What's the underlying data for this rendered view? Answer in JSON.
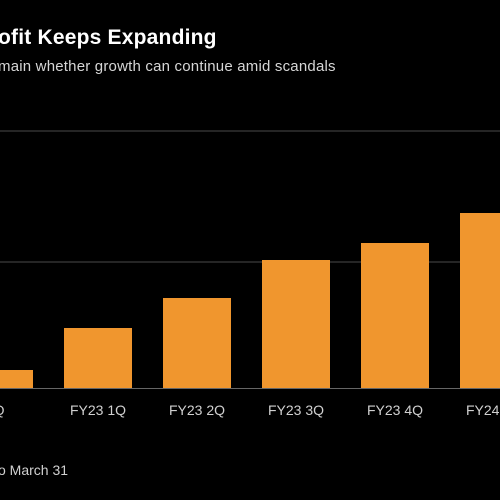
{
  "chart_data": {
    "type": "bar",
    "title": "ofit Keeps Expanding",
    "subtitle": "main whether growth can continue amid scandals",
    "categories": [
      "Q",
      "FY23 1Q",
      "FY23 2Q",
      "FY23 3Q",
      "FY23 4Q",
      "FY24 1Q"
    ],
    "values": [
      18,
      60,
      90,
      128,
      145,
      175
    ],
    "ylim": [
      0,
      175
    ],
    "grid": true,
    "bar_color": "#f0962e",
    "gridline_color": "#4a4a4a",
    "footnote": "o March 31"
  }
}
